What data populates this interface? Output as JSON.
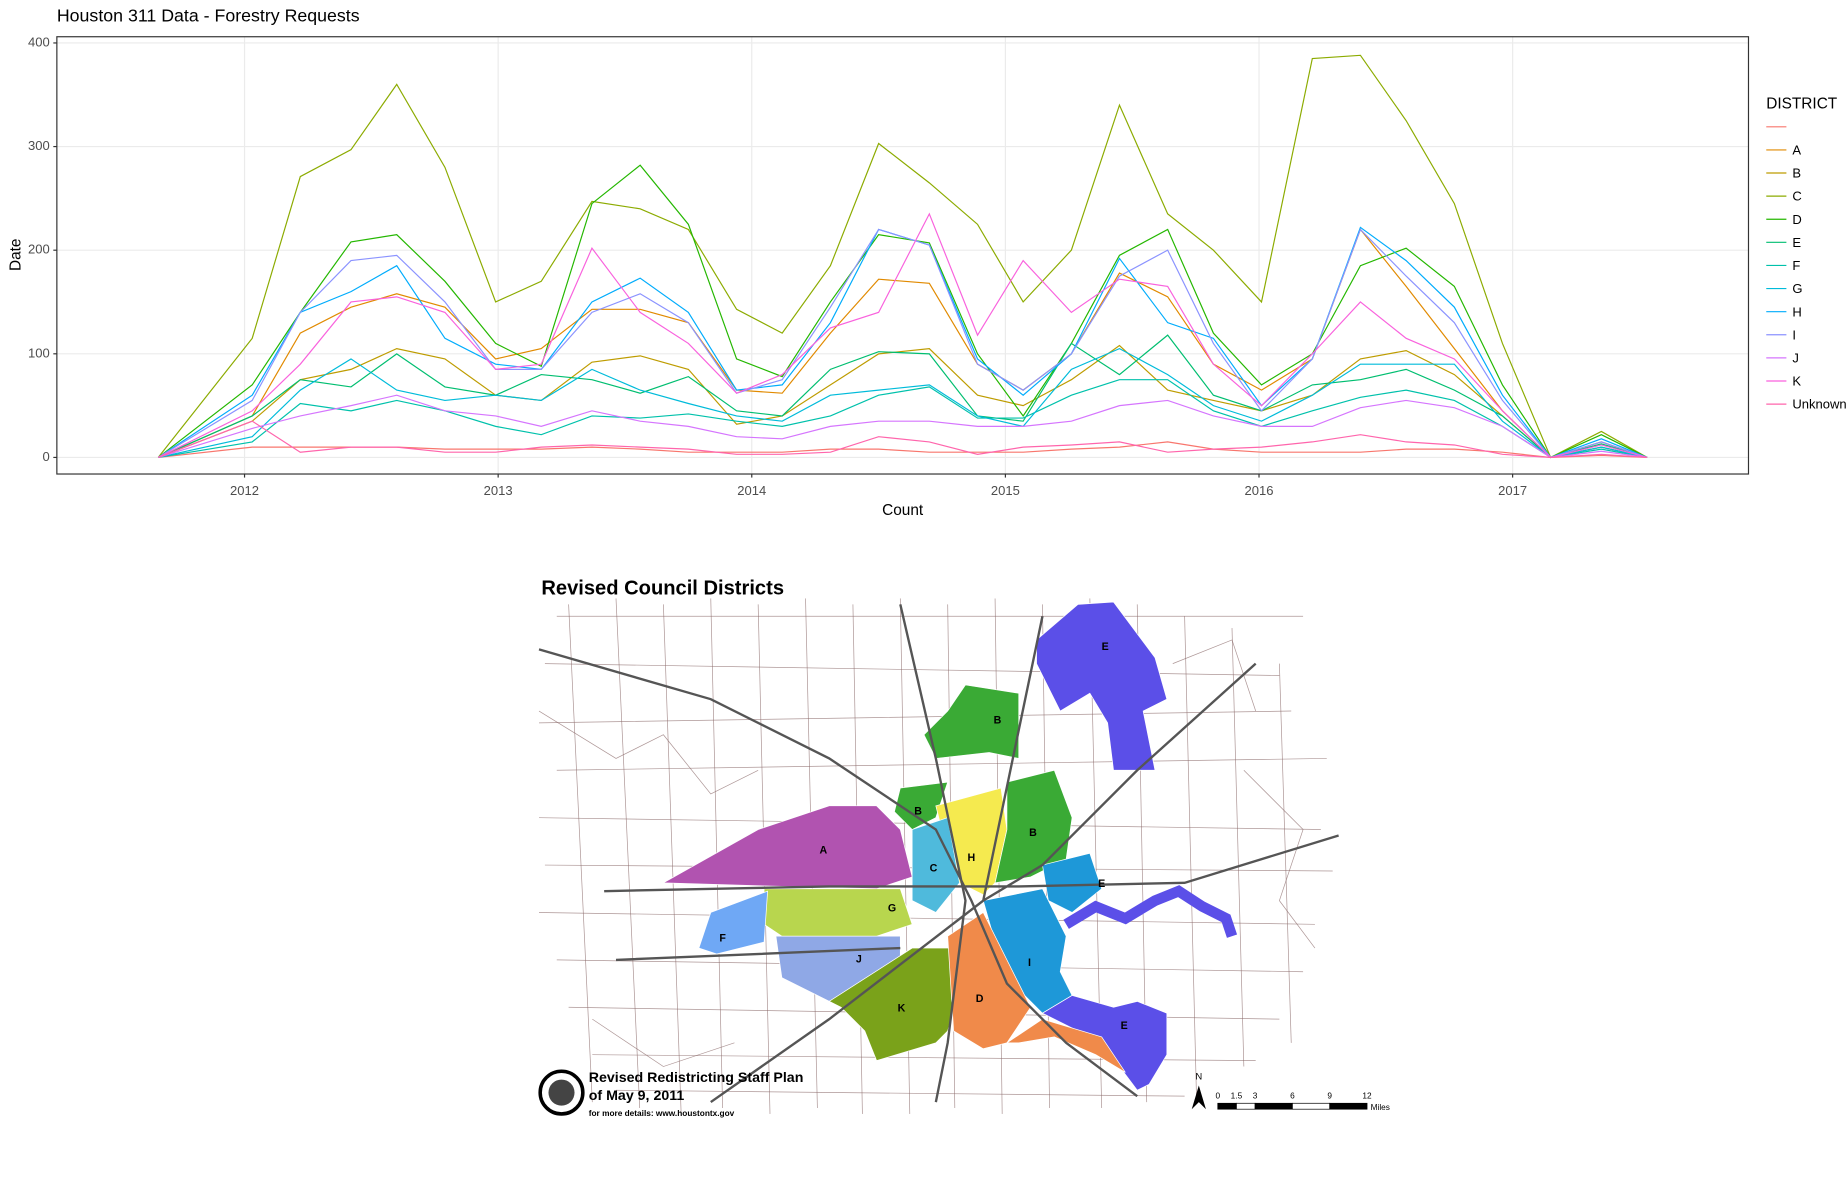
{
  "chart_data": {
    "type": "line",
    "title": "Houston 311 Data - Forestry Requests",
    "x_label": "Count",
    "y_label": "Date",
    "x": [
      2011.66,
      2012.03,
      2012.22,
      2012.42,
      2012.6,
      2012.79,
      2012.99,
      2013.17,
      2013.37,
      2013.56,
      2013.75,
      2013.94,
      2014.12,
      2014.31,
      2014.5,
      2014.7,
      2014.89,
      2015.07,
      2015.26,
      2015.45,
      2015.64,
      2015.82,
      2016.01,
      2016.21,
      2016.4,
      2016.58,
      2016.77,
      2016.96,
      2017.15,
      2017.35,
      2017.53
    ],
    "xlim": [
      2011.26,
      2017.93
    ],
    "xticks": [
      2012,
      2013,
      2014,
      2015,
      2016,
      2017
    ],
    "ylim": [
      -16,
      406
    ],
    "yticks": [
      0,
      100,
      200,
      300,
      400
    ],
    "grid": true,
    "legend_title": "DISTRICT",
    "legend_position": "right",
    "series": [
      {
        "name": null,
        "color": "#F8766D",
        "values": [
          0,
          10,
          10,
          10,
          10,
          8,
          8,
          8,
          10,
          8,
          5,
          5,
          5,
          8,
          8,
          5,
          5,
          5,
          8,
          10,
          15,
          8,
          5,
          5,
          5,
          8,
          8,
          5,
          0,
          2,
          0
        ]
      },
      {
        "name": "A",
        "color": "#E18A00",
        "values": [
          0,
          40,
          120,
          145,
          158,
          145,
          95,
          105,
          143,
          143,
          130,
          65,
          62,
          120,
          172,
          168,
          90,
          65,
          100,
          178,
          155,
          90,
          65,
          95,
          220,
          165,
          105,
          45,
          0,
          15,
          0
        ]
      },
      {
        "name": "B",
        "color": "#BE9C00",
        "values": [
          0,
          35,
          75,
          85,
          105,
          95,
          60,
          55,
          92,
          98,
          85,
          32,
          40,
          70,
          100,
          105,
          60,
          50,
          75,
          108,
          65,
          55,
          45,
          60,
          95,
          103,
          80,
          40,
          0,
          10,
          0
        ]
      },
      {
        "name": "C",
        "color": "#8CAB00",
        "values": [
          0,
          115,
          271,
          297,
          360,
          280,
          150,
          170,
          247,
          240,
          220,
          143,
          120,
          185,
          303,
          265,
          225,
          150,
          200,
          340,
          235,
          200,
          150,
          385,
          388,
          325,
          245,
          110,
          0,
          25,
          0
        ]
      },
      {
        "name": "D",
        "color": "#24B700",
        "values": [
          0,
          70,
          140,
          208,
          215,
          170,
          110,
          88,
          245,
          282,
          225,
          95,
          78,
          150,
          215,
          207,
          100,
          40,
          110,
          195,
          220,
          120,
          70,
          100,
          185,
          202,
          165,
          70,
          0,
          22,
          0
        ]
      },
      {
        "name": "E",
        "color": "#00BE70",
        "values": [
          0,
          40,
          75,
          68,
          100,
          68,
          60,
          80,
          75,
          62,
          78,
          45,
          40,
          85,
          102,
          100,
          40,
          35,
          110,
          80,
          118,
          60,
          45,
          70,
          75,
          85,
          65,
          40,
          0,
          13,
          0
        ]
      },
      {
        "name": "F",
        "color": "#00C1AB",
        "values": [
          0,
          15,
          52,
          45,
          55,
          45,
          30,
          22,
          40,
          38,
          42,
          35,
          30,
          40,
          60,
          68,
          38,
          38,
          60,
          75,
          75,
          45,
          30,
          45,
          58,
          65,
          55,
          30,
          0,
          8,
          0
        ]
      },
      {
        "name": "G",
        "color": "#00BBDA",
        "values": [
          0,
          20,
          65,
          95,
          65,
          55,
          60,
          55,
          85,
          65,
          52,
          40,
          35,
          60,
          65,
          70,
          40,
          30,
          85,
          105,
          80,
          50,
          35,
          60,
          90,
          90,
          90,
          35,
          0,
          10,
          0
        ]
      },
      {
        "name": "H",
        "color": "#00ACFC",
        "values": [
          0,
          60,
          140,
          160,
          185,
          115,
          90,
          85,
          150,
          173,
          140,
          65,
          70,
          130,
          220,
          205,
          95,
          60,
          100,
          192,
          130,
          115,
          50,
          95,
          222,
          190,
          145,
          60,
          0,
          18,
          0
        ]
      },
      {
        "name": "I",
        "color": "#8B93FF",
        "values": [
          0,
          55,
          140,
          190,
          195,
          150,
          85,
          85,
          140,
          158,
          130,
          62,
          75,
          145,
          220,
          205,
          90,
          65,
          100,
          175,
          200,
          110,
          45,
          95,
          220,
          175,
          130,
          55,
          0,
          15,
          0
        ]
      },
      {
        "name": "J",
        "color": "#D575FE",
        "values": [
          0,
          28,
          40,
          50,
          60,
          45,
          40,
          30,
          45,
          35,
          30,
          20,
          18,
          30,
          35,
          35,
          30,
          30,
          35,
          50,
          55,
          40,
          30,
          30,
          48,
          55,
          48,
          30,
          0,
          6,
          0
        ]
      },
      {
        "name": "K",
        "color": "#F962DD",
        "values": [
          0,
          45,
          90,
          150,
          155,
          140,
          85,
          90,
          202,
          140,
          110,
          62,
          80,
          125,
          140,
          235,
          118,
          190,
          140,
          172,
          165,
          90,
          50,
          100,
          150,
          115,
          95,
          45,
          0,
          12,
          0
        ]
      },
      {
        "name": "Unknown",
        "color": "#FF65AC",
        "values": [
          0,
          35,
          5,
          10,
          10,
          5,
          5,
          10,
          12,
          10,
          8,
          3,
          3,
          5,
          20,
          15,
          3,
          10,
          12,
          15,
          5,
          8,
          10,
          15,
          22,
          15,
          12,
          3,
          0,
          3,
          0
        ]
      }
    ]
  },
  "map": {
    "title": "Revised Council Districts",
    "footer": [
      "Revised Redistricting Staff Plan",
      "of May 9, 2011",
      "for more details: www.houstontx.gov"
    ],
    "north": "N",
    "scale": {
      "labels": [
        0,
        1.5,
        3,
        6,
        9,
        12
      ],
      "unit": "Miles"
    },
    "districts": [
      "E",
      "B",
      "B",
      "B",
      "A",
      "H",
      "C",
      "E",
      "G",
      "F",
      "J",
      "I",
      "D",
      "K",
      "E"
    ]
  }
}
